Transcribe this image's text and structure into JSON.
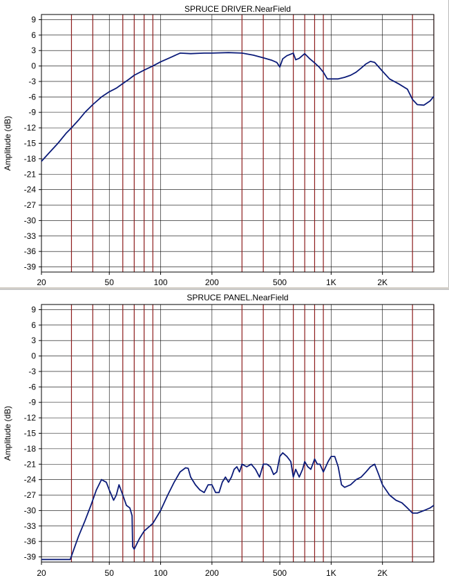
{
  "colors": {
    "grid": "#000000",
    "hgrid": "#000000",
    "vgrid_marker": "#8b1a1a",
    "trace": "#0a1a78",
    "frame": "#000000",
    "text": "#000000"
  },
  "chart_data": [
    {
      "type": "line",
      "title": "SPRUCE DRIVER.NearField",
      "ylabel": "Amplitude (dB)",
      "xlabel": "",
      "xscale": "log",
      "xlim": [
        20,
        4000
      ],
      "ylim": [
        -40,
        10
      ],
      "yticks": [
        9,
        6,
        3,
        0,
        -3,
        -6,
        -9,
        -12,
        -15,
        -18,
        -21,
        -24,
        -27,
        -30,
        -33,
        -36,
        -39
      ],
      "ytick_labels": [
        "9",
        "6",
        "3",
        "0",
        "-3",
        "-6",
        "-9",
        "-12",
        "-15",
        "-18",
        "-21",
        "-24",
        "-27",
        "-30",
        "-33",
        "-36",
        "-39"
      ],
      "xticks": [
        20,
        50,
        100,
        200,
        500,
        1000,
        2000
      ],
      "xtick_labels": [
        "20",
        "50",
        "100",
        "200",
        "500",
        "1K",
        "2K"
      ],
      "minor_xgrid": [
        30,
        40,
        60,
        70,
        80,
        90,
        300,
        400,
        600,
        700,
        800,
        900,
        3000,
        4000
      ],
      "grid": true,
      "series": [
        {
          "x": [
            20,
            22,
            25,
            28,
            30,
            33,
            36,
            40,
            45,
            50,
            55,
            60,
            65,
            70,
            80,
            90,
            100,
            115,
            130,
            150,
            180,
            200,
            250,
            300,
            350,
            400,
            450,
            480,
            500,
            520,
            550,
            600,
            620,
            650,
            700,
            750,
            800,
            850,
            900,
            950,
            1000,
            1100,
            1200,
            1300,
            1400,
            1500,
            1600,
            1700,
            1800,
            2000,
            2200,
            2500,
            2800,
            3000,
            3200,
            3500,
            3800,
            4000
          ],
          "y": [
            -18.5,
            -17,
            -15,
            -13,
            -12,
            -10.5,
            -9,
            -7.5,
            -6,
            -5,
            -4.3,
            -3.4,
            -2.6,
            -1.8,
            -0.8,
            0,
            0.8,
            1.7,
            2.5,
            2.4,
            2.5,
            2.5,
            2.6,
            2.5,
            2.1,
            1.6,
            1.1,
            0.7,
            -0.2,
            1.4,
            2.0,
            2.5,
            1.2,
            1.5,
            2.4,
            1.4,
            0.6,
            -0.2,
            -1.2,
            -2.5,
            -2.5,
            -2.5,
            -2.2,
            -1.8,
            -1.2,
            -0.4,
            0.4,
            0.9,
            0.7,
            -1.0,
            -2.5,
            -3.5,
            -4.5,
            -6.5,
            -7.5,
            -7.6,
            -6.8,
            -5.9
          ]
        }
      ]
    },
    {
      "type": "line",
      "title": "SPRUCE PANEL.NearField",
      "ylabel": "Amplitude (dB)",
      "xlabel": "",
      "xscale": "log",
      "xlim": [
        20,
        4000
      ],
      "ylim": [
        -40,
        10
      ],
      "yticks": [
        9,
        6,
        3,
        0,
        -3,
        -6,
        -9,
        -12,
        -15,
        -18,
        -21,
        -24,
        -27,
        -30,
        -33,
        -36,
        -39
      ],
      "ytick_labels": [
        "9",
        "6",
        "3",
        "0",
        "-3",
        "-6",
        "-9",
        "-12",
        "-15",
        "-18",
        "-21",
        "-24",
        "-27",
        "-30",
        "-33",
        "-36",
        "-39"
      ],
      "xticks": [
        20,
        50,
        100,
        200,
        500,
        1000,
        2000
      ],
      "xtick_labels": [
        "20",
        "50",
        "100",
        "200",
        "500",
        "1K",
        "2K"
      ],
      "minor_xgrid": [
        30,
        40,
        60,
        70,
        80,
        90,
        300,
        400,
        600,
        700,
        800,
        900,
        3000,
        4000
      ],
      "grid": true,
      "series": [
        {
          "x": [
            20,
            25,
            29.5,
            31,
            33,
            36,
            39,
            42,
            45,
            48,
            50,
            53,
            55,
            57,
            60,
            63,
            66,
            68,
            68.5,
            70,
            75,
            80,
            90,
            100,
            110,
            120,
            130,
            140,
            145,
            150,
            160,
            170,
            180,
            190,
            200,
            210,
            220,
            230,
            240,
            250,
            260,
            270,
            280,
            290,
            300,
            320,
            340,
            360,
            380,
            400,
            420,
            440,
            460,
            480,
            500,
            520,
            550,
            580,
            600,
            620,
            650,
            680,
            700,
            730,
            760,
            800,
            830,
            860,
            900,
            930,
            960,
            1000,
            1050,
            1100,
            1150,
            1200,
            1300,
            1400,
            1500,
            1600,
            1700,
            1800,
            1900,
            2000,
            2200,
            2400,
            2600,
            2800,
            3000,
            3200,
            3500,
            3800,
            4000
          ],
          "y": [
            -39.5,
            -39.5,
            -39.5,
            -37.5,
            -35,
            -32,
            -29,
            -26,
            -24,
            -24.5,
            -26,
            -28,
            -27,
            -25,
            -27,
            -29,
            -29.5,
            -31,
            -37,
            -37.5,
            -35.5,
            -34,
            -32.5,
            -30,
            -27,
            -24.5,
            -22.5,
            -21.7,
            -21.8,
            -23.5,
            -25,
            -26,
            -26.5,
            -25,
            -25,
            -26.5,
            -26.5,
            -24.5,
            -23.5,
            -24.5,
            -23.5,
            -22,
            -21.5,
            -22.5,
            -21,
            -21.5,
            -21,
            -22,
            -23.5,
            -21,
            -21,
            -21.5,
            -23,
            -22.5,
            -19.5,
            -18.8,
            -19.5,
            -20.5,
            -23.5,
            -22,
            -23.5,
            -22,
            -20.5,
            -21.5,
            -22,
            -20,
            -21,
            -21,
            -22.5,
            -21.5,
            -20.5,
            -19.5,
            -19.5,
            -21.5,
            -25,
            -25.5,
            -25,
            -24,
            -23.5,
            -22.5,
            -21.5,
            -21,
            -23,
            -25,
            -27,
            -28,
            -28.5,
            -29.5,
            -30.5,
            -30.5,
            -30,
            -29.5,
            -29
          ]
        }
      ]
    }
  ]
}
